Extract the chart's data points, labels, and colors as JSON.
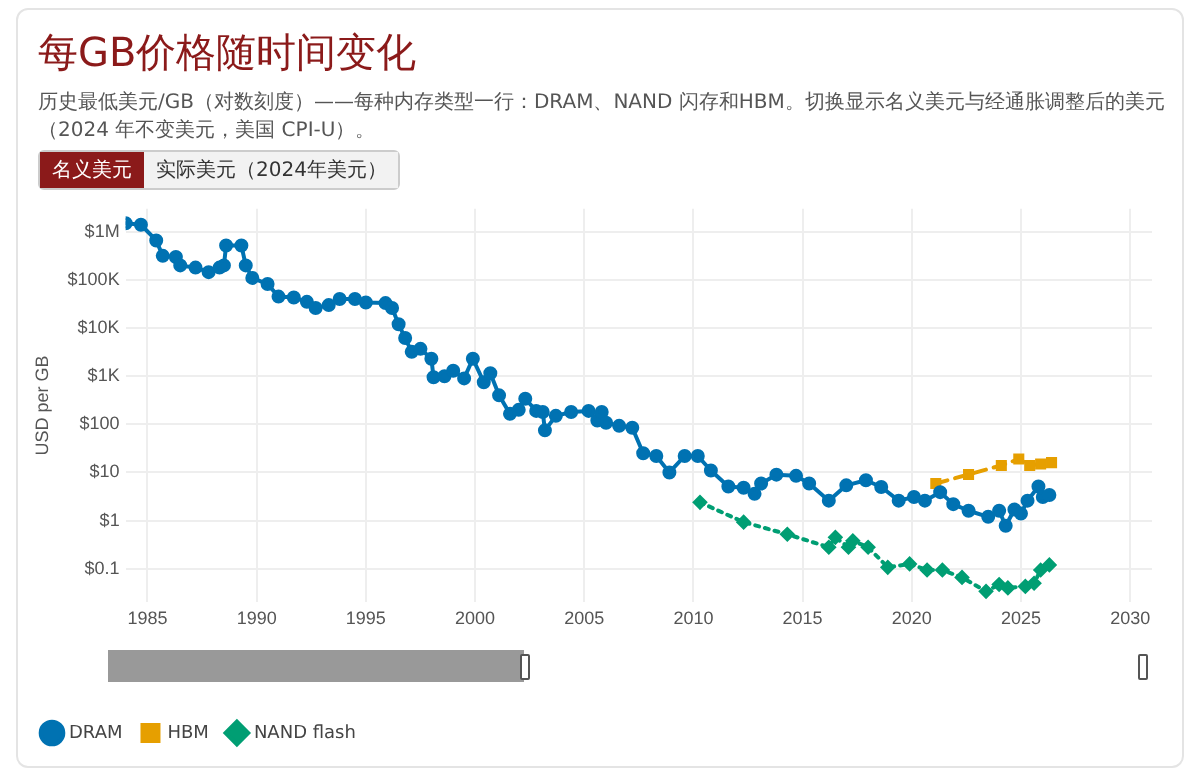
{
  "chart_data": {
    "type": "line",
    "title": "每GB价格随时间变化",
    "subtitle": "历史最低美元/GB（对数刻度）——每种内存类型一行：DRAM、NAND 闪存和HBM。切换显示名义美元与经通胀调整后的美元（2024 年不变美元，美国 CPI-U）。",
    "annotations": [
      "名义美元",
      "实际美元（2024年美元）"
    ],
    "ylabel": "USD per GB",
    "log": "y",
    "grid": true,
    "legend": "bottom left",
    "xlim": [
      1984,
      2031
    ],
    "xticks": [
      1985,
      1990,
      1995,
      2000,
      2005,
      2010,
      2015,
      2020,
      2025,
      2030
    ],
    "ylim": [
      0.02,
      3000000
    ],
    "yticks": [
      {
        "value": 0.1,
        "label": "$0.1"
      },
      {
        "value": 1,
        "label": "$1"
      },
      {
        "value": 10,
        "label": "$10"
      },
      {
        "value": 100,
        "label": "$100"
      },
      {
        "value": 1000,
        "label": "$1K"
      },
      {
        "value": 10000,
        "label": "$10K"
      },
      {
        "value": 100000,
        "label": "$100K"
      },
      {
        "value": 1000000,
        "label": "$1M"
      }
    ],
    "series": [
      {
        "name": "DRAM",
        "color": "#0072b2",
        "marker": "circle",
        "line_style": "solid",
        "x": [
          1984.0,
          1984.7,
          1985.4,
          1985.7,
          1986.3,
          1986.5,
          1987.2,
          1987.8,
          1988.3,
          1988.5,
          1988.6,
          1989.3,
          1989.5,
          1989.8,
          1990.5,
          1991.0,
          1991.7,
          1992.3,
          1992.7,
          1993.3,
          1993.8,
          1994.5,
          1995.0,
          1995.9,
          1996.2,
          1996.5,
          1996.8,
          1997.1,
          1997.5,
          1998.0,
          1998.1,
          1998.6,
          1999.0,
          1999.5,
          1999.9,
          2000.4,
          2000.7,
          2001.1,
          2001.6,
          2002.0,
          2002.3,
          2002.8,
          2003.1,
          2003.2,
          2003.7,
          2004.4,
          2005.2,
          2005.6,
          2005.8,
          2006.0,
          2006.6,
          2007.2,
          2007.7,
          2008.3,
          2008.9,
          2009.6,
          2010.2,
          2010.8,
          2011.6,
          2012.3,
          2012.8,
          2013.1,
          2013.8,
          2014.7,
          2015.3,
          2016.2,
          2017.0,
          2017.9,
          2018.6,
          2019.4,
          2020.1,
          2020.6,
          2021.3,
          2021.9,
          2022.6,
          2023.5,
          2024.0,
          2024.3,
          2024.7,
          2025.0,
          2025.3,
          2025.8,
          2026.0,
          2026.3
        ],
        "values": [
          1500000,
          1400000,
          660000,
          316000,
          300000,
          200000,
          180000,
          145000,
          180000,
          200000,
          520000,
          520000,
          200000,
          110000,
          82000,
          45000,
          43000,
          35000,
          26000,
          30000,
          40000,
          40000,
          34000,
          33000,
          26000,
          12000,
          6200,
          3200,
          3700,
          2300,
          950,
          1000,
          1300,
          900,
          2300,
          750,
          1150,
          400,
          165,
          200,
          340,
          190,
          180,
          75,
          150,
          180,
          190,
          120,
          180,
          108,
          93,
          85,
          25,
          22,
          10,
          22,
          22,
          11,
          5.1,
          4.8,
          3.6,
          5.9,
          9,
          8.5,
          5.9,
          2.6,
          5.4,
          6.9,
          5,
          2.6,
          3.1,
          2.6,
          3.9,
          2.2,
          1.6,
          1.2,
          1.6,
          0.78,
          1.7,
          1.4,
          2.6,
          5.1,
          3.1,
          3.4
        ]
      },
      {
        "name": "HBM",
        "color": "#e69f00",
        "marker": "square",
        "line_style": "dashed",
        "x": [
          2021.1,
          2022.6,
          2024.1,
          2024.9,
          2025.4,
          2025.9,
          2026.4
        ],
        "values": [
          5.9,
          9.1,
          14,
          19,
          14,
          15,
          16
        ]
      },
      {
        "name": "NAND flash",
        "color": "#009e73",
        "marker": "diamond",
        "line_style": "dotted",
        "x": [
          2010.3,
          2012.3,
          2014.3,
          2016.2,
          2016.5,
          2017.1,
          2017.3,
          2018.0,
          2018.9,
          2019.9,
          2020.7,
          2021.4,
          2022.3,
          2023.4,
          2024.0,
          2024.4,
          2025.2,
          2025.6,
          2025.9,
          2026.3
        ],
        "values": [
          2.4,
          0.93,
          0.52,
          0.28,
          0.45,
          0.28,
          0.38,
          0.28,
          0.107,
          0.126,
          0.094,
          0.094,
          0.066,
          0.034,
          0.047,
          0.04,
          0.043,
          0.05,
          0.094,
          0.12
        ]
      }
    ]
  }
}
